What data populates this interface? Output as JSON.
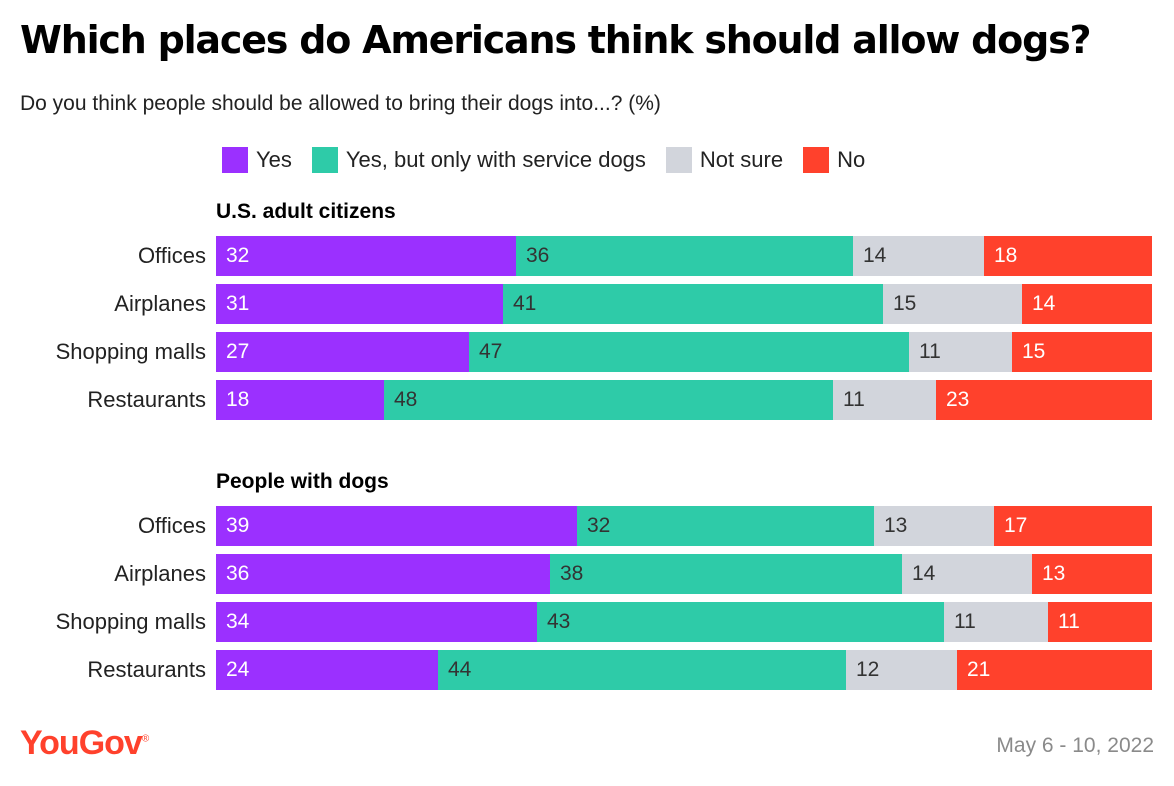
{
  "title": "Which places do Americans think should allow dogs?",
  "subtitle": "Do you think people should be allowed to bring their dogs into...? (%)",
  "colors": {
    "yes": "#9b30ff",
    "service": "#2ecba8",
    "not_sure": "#d2d5dc",
    "no": "#ff412c"
  },
  "legend": [
    {
      "label": "Yes",
      "key": "yes"
    },
    {
      "label": "Yes, but only with service dogs",
      "key": "service"
    },
    {
      "label": "Not sure",
      "key": "not_sure"
    },
    {
      "label": "No",
      "key": "no"
    }
  ],
  "chart_data": {
    "type": "bar",
    "orientation": "horizontal",
    "stacked": true,
    "title": "Which places do Americans think should allow dogs?",
    "subtitle": "Do you think people should be allowed to bring their dogs into...? (%)",
    "series_names": [
      "Yes",
      "Yes, but only with service dogs",
      "Not sure",
      "No"
    ],
    "groups": [
      {
        "name": "U.S. adult citizens",
        "categories": [
          "Offices",
          "Airplanes",
          "Shopping malls",
          "Restaurants"
        ],
        "series": [
          {
            "name": "Yes",
            "values": [
              32,
              31,
              27,
              18
            ]
          },
          {
            "name": "Yes, but only with service dogs",
            "values": [
              36,
              41,
              47,
              48
            ]
          },
          {
            "name": "Not sure",
            "values": [
              14,
              15,
              11,
              11
            ]
          },
          {
            "name": "No",
            "values": [
              18,
              14,
              15,
              23
            ]
          }
        ]
      },
      {
        "name": "People with dogs",
        "categories": [
          "Offices",
          "Airplanes",
          "Shopping malls",
          "Restaurants"
        ],
        "series": [
          {
            "name": "Yes",
            "values": [
              39,
              36,
              34,
              24
            ]
          },
          {
            "name": "Yes, but only with service dogs",
            "values": [
              32,
              38,
              43,
              44
            ]
          },
          {
            "name": "Not sure",
            "values": [
              13,
              14,
              11,
              12
            ]
          },
          {
            "name": "No",
            "values": [
              17,
              13,
              11,
              21
            ]
          }
        ]
      }
    ],
    "legend_position": "top",
    "grid": false
  },
  "footer": {
    "logo": "YouGov",
    "logo_mark": "®",
    "date": "May 6 - 10, 2022"
  }
}
